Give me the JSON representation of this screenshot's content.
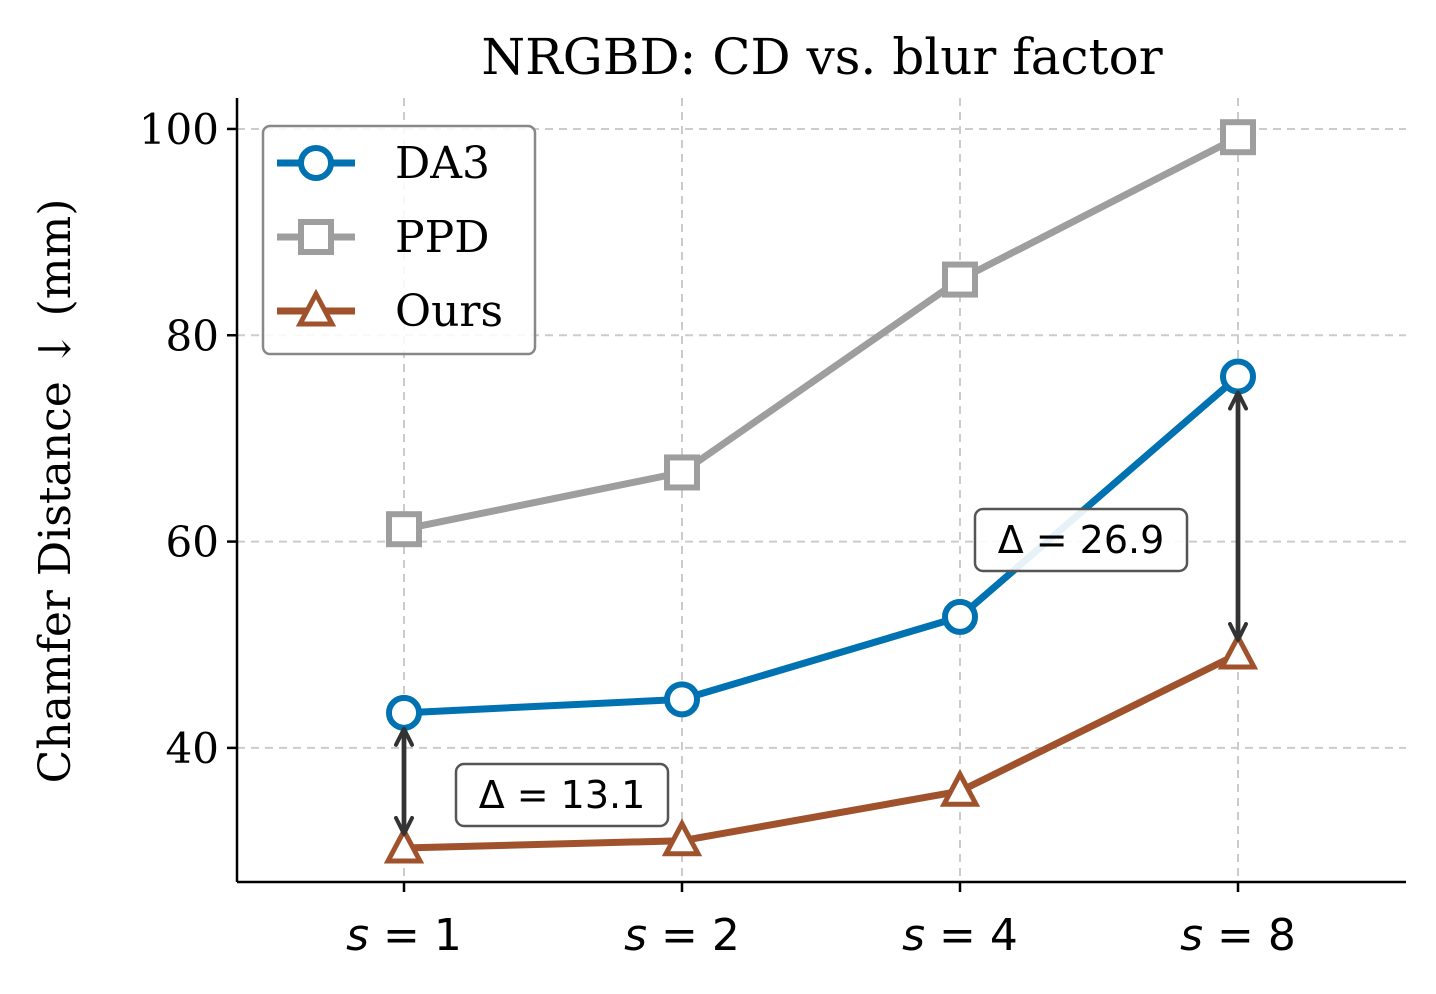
{
  "chart_data": {
    "type": "line",
    "title": "NRGBD: CD vs. blur factor",
    "ylabel": "Chamfer Distance ↓ (mm)",
    "xlabel": "",
    "categories": [
      "s = 1",
      "s = 2",
      "s = 4",
      "s = 8"
    ],
    "y_ticks": [
      40,
      60,
      80,
      100
    ],
    "ylim": [
      27,
      103
    ],
    "grid": true,
    "legend_position": "top-left",
    "series": [
      {
        "name": "DA3",
        "marker": "circle",
        "color": "#0072b2",
        "values": [
          43.4,
          44.7,
          52.7,
          76.0
        ]
      },
      {
        "name": "PPD",
        "marker": "square",
        "color": "#9e9e9e",
        "values": [
          61.2,
          66.7,
          85.4,
          99.2
        ]
      },
      {
        "name": "Ours",
        "marker": "triangle",
        "color": "#a0522d",
        "values": [
          30.3,
          31.0,
          35.8,
          49.1
        ]
      }
    ],
    "annotations": [
      {
        "text": "Δ = 13.1",
        "category_index": 0,
        "from_series": "DA3",
        "to_series": "Ours"
      },
      {
        "text": "Δ = 26.9",
        "category_index": 3,
        "from_series": "DA3",
        "to_series": "Ours"
      }
    ]
  }
}
